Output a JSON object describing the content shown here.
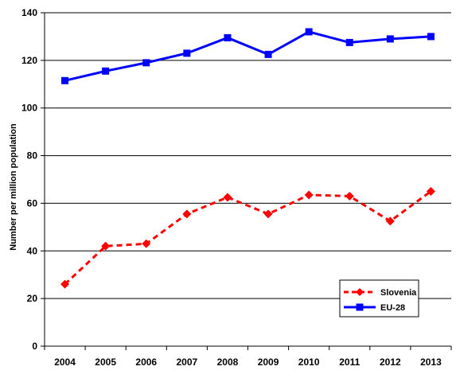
{
  "chart_data": {
    "type": "line",
    "title": "",
    "xlabel": "",
    "ylabel": "Number per million population",
    "x": [
      "2004",
      "2005",
      "2006",
      "2007",
      "2008",
      "2009",
      "2010",
      "2011",
      "2012",
      "2013"
    ],
    "ylim": [
      0,
      140
    ],
    "yticks": [
      "0",
      "20",
      "40",
      "60",
      "80",
      "100",
      "120",
      "140"
    ],
    "grid": true,
    "legend_position": "bottom-right",
    "series": [
      {
        "name": "Slovenia",
        "color": "#ff0000",
        "marker": "diamond",
        "line_style": "dashed",
        "values": [
          26,
          42,
          43,
          55.5,
          62.5,
          55.5,
          63.5,
          63,
          52.5,
          65
        ]
      },
      {
        "name": "EU-28",
        "color": "#0000ff",
        "marker": "square",
        "line_style": "solid",
        "values": [
          111.5,
          115.5,
          119,
          123,
          129.5,
          122.5,
          132,
          127.5,
          129,
          130
        ]
      }
    ]
  }
}
